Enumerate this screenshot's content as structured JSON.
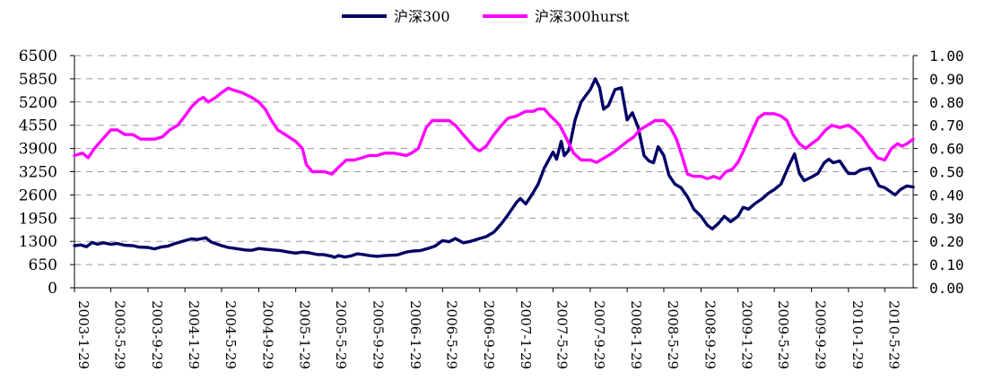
{
  "chart_data": {
    "type": "line",
    "title": "",
    "xlabel": "",
    "ylabel": "",
    "legend_position": "top-center",
    "grid": true,
    "x_start": "2003-1-29",
    "x_end": "2010-8-31",
    "x_tick_labels": [
      "2003-1-29",
      "2003-5-29",
      "2003-9-29",
      "2004-1-29",
      "2004-5-29",
      "2004-9-29",
      "2005-1-29",
      "2005-5-29",
      "2005-9-29",
      "2006-1-29",
      "2006-5-29",
      "2006-9-29",
      "2007-1-29",
      "2007-5-29",
      "2007-9-29",
      "2008-1-29",
      "2008-5-29",
      "2008-9-29",
      "2009-1-29",
      "2009-5-29",
      "2009-9-29",
      "2010-1-29",
      "2010-5-29"
    ],
    "y_left": {
      "ylim": [
        0,
        6500
      ],
      "ticks": [
        "0",
        "650",
        "1300",
        "1950",
        "2600",
        "3250",
        "3900",
        "4550",
        "5200",
        "5850",
        "6500"
      ]
    },
    "y_right": {
      "ylim": [
        0,
        1
      ],
      "ticks": [
        "0.00",
        "0.10",
        "0.20",
        "0.30",
        "0.40",
        "0.50",
        "0.60",
        "0.70",
        "0.80",
        "0.90",
        "1.00"
      ]
    },
    "series": [
      {
        "name": "沪深300",
        "axis": "left",
        "color": "#000066",
        "points": [
          [
            "2003-01-29",
            1180
          ],
          [
            "2003-02-20",
            1200
          ],
          [
            "2003-03-10",
            1150
          ],
          [
            "2003-03-28",
            1270
          ],
          [
            "2003-04-15",
            1220
          ],
          [
            "2003-05-05",
            1260
          ],
          [
            "2003-05-29",
            1220
          ],
          [
            "2003-06-20",
            1240
          ],
          [
            "2003-07-15",
            1190
          ],
          [
            "2003-08-10",
            1180
          ],
          [
            "2003-08-30",
            1140
          ],
          [
            "2003-09-29",
            1130
          ],
          [
            "2003-10-20",
            1090
          ],
          [
            "2003-11-10",
            1140
          ],
          [
            "2003-12-05",
            1170
          ],
          [
            "2003-12-31",
            1250
          ],
          [
            "2004-01-29",
            1320
          ],
          [
            "2004-02-20",
            1370
          ],
          [
            "2004-03-10",
            1350
          ],
          [
            "2004-04-07",
            1400
          ],
          [
            "2004-04-25",
            1280
          ],
          [
            "2004-05-29",
            1180
          ],
          [
            "2004-06-20",
            1130
          ],
          [
            "2004-07-15",
            1100
          ],
          [
            "2004-08-15",
            1060
          ],
          [
            "2004-09-05",
            1050
          ],
          [
            "2004-09-29",
            1100
          ],
          [
            "2004-10-20",
            1080
          ],
          [
            "2004-11-15",
            1060
          ],
          [
            "2004-12-10",
            1040
          ],
          [
            "2005-01-05",
            1000
          ],
          [
            "2005-01-29",
            970
          ],
          [
            "2005-02-20",
            1000
          ],
          [
            "2005-03-15",
            980
          ],
          [
            "2005-04-10",
            930
          ],
          [
            "2005-04-30",
            930
          ],
          [
            "2005-05-29",
            880
          ],
          [
            "2005-06-06",
            850
          ],
          [
            "2005-06-20",
            900
          ],
          [
            "2005-07-10",
            860
          ],
          [
            "2005-07-30",
            890
          ],
          [
            "2005-08-20",
            950
          ],
          [
            "2005-09-10",
            930
          ],
          [
            "2005-09-29",
            900
          ],
          [
            "2005-10-25",
            880
          ],
          [
            "2005-11-20",
            900
          ],
          [
            "2005-12-31",
            920
          ],
          [
            "2006-01-29",
            1000
          ],
          [
            "2006-02-20",
            1030
          ],
          [
            "2006-03-15",
            1040
          ],
          [
            "2006-04-10",
            1100
          ],
          [
            "2006-05-05",
            1170
          ],
          [
            "2006-05-29",
            1320
          ],
          [
            "2006-06-20",
            1290
          ],
          [
            "2006-07-10",
            1380
          ],
          [
            "2006-08-05",
            1260
          ],
          [
            "2006-08-25",
            1290
          ],
          [
            "2006-09-29",
            1380
          ],
          [
            "2006-10-20",
            1430
          ],
          [
            "2006-11-15",
            1560
          ],
          [
            "2006-12-10",
            1800
          ],
          [
            "2006-12-31",
            2040
          ],
          [
            "2007-01-29",
            2400
          ],
          [
            "2007-02-10",
            2500
          ],
          [
            "2007-02-28",
            2350
          ],
          [
            "2007-03-20",
            2600
          ],
          [
            "2007-04-10",
            2900
          ],
          [
            "2007-04-30",
            3350
          ],
          [
            "2007-05-29",
            3800
          ],
          [
            "2007-06-10",
            3600
          ],
          [
            "2007-06-25",
            4100
          ],
          [
            "2007-07-05",
            3700
          ],
          [
            "2007-07-20",
            3850
          ],
          [
            "2007-08-10",
            4700
          ],
          [
            "2007-08-30",
            5200
          ],
          [
            "2007-09-29",
            5550
          ],
          [
            "2007-10-16",
            5850
          ],
          [
            "2007-10-30",
            5600
          ],
          [
            "2007-11-12",
            5000
          ],
          [
            "2007-11-28",
            5100
          ],
          [
            "2007-12-20",
            5550
          ],
          [
            "2008-01-10",
            5600
          ],
          [
            "2008-01-29",
            4700
          ],
          [
            "2008-02-15",
            4900
          ],
          [
            "2008-03-05",
            4500
          ],
          [
            "2008-03-25",
            3700
          ],
          [
            "2008-04-10",
            3550
          ],
          [
            "2008-04-25",
            3500
          ],
          [
            "2008-05-10",
            3950
          ],
          [
            "2008-05-29",
            3700
          ],
          [
            "2008-06-15",
            3150
          ],
          [
            "2008-07-05",
            2900
          ],
          [
            "2008-07-25",
            2800
          ],
          [
            "2008-08-15",
            2550
          ],
          [
            "2008-09-05",
            2200
          ],
          [
            "2008-09-29",
            2000
          ],
          [
            "2008-10-20",
            1750
          ],
          [
            "2008-11-05",
            1650
          ],
          [
            "2008-11-25",
            1800
          ],
          [
            "2008-12-15",
            2000
          ],
          [
            "2009-01-05",
            1850
          ],
          [
            "2009-01-29",
            2000
          ],
          [
            "2009-02-15",
            2250
          ],
          [
            "2009-03-05",
            2200
          ],
          [
            "2009-03-25",
            2350
          ],
          [
            "2009-04-20",
            2500
          ],
          [
            "2009-05-10",
            2650
          ],
          [
            "2009-05-29",
            2750
          ],
          [
            "2009-06-20",
            2900
          ],
          [
            "2009-07-15",
            3400
          ],
          [
            "2009-08-04",
            3750
          ],
          [
            "2009-08-20",
            3200
          ],
          [
            "2009-09-05",
            3000
          ],
          [
            "2009-09-29",
            3100
          ],
          [
            "2009-10-20",
            3200
          ],
          [
            "2009-11-10",
            3500
          ],
          [
            "2009-11-25",
            3600
          ],
          [
            "2009-12-10",
            3500
          ],
          [
            "2009-12-31",
            3550
          ],
          [
            "2010-01-20",
            3300
          ],
          [
            "2010-01-29",
            3200
          ],
          [
            "2010-02-20",
            3200
          ],
          [
            "2010-03-10",
            3300
          ],
          [
            "2010-04-10",
            3350
          ],
          [
            "2010-04-25",
            3100
          ],
          [
            "2010-05-10",
            2850
          ],
          [
            "2010-05-29",
            2800
          ],
          [
            "2010-06-15",
            2700
          ],
          [
            "2010-07-02",
            2600
          ],
          [
            "2010-07-20",
            2750
          ],
          [
            "2010-08-10",
            2850
          ],
          [
            "2010-08-31",
            2820
          ]
        ]
      },
      {
        "name": "沪深300hurst",
        "axis": "right",
        "color": "#ff00ff",
        "points": [
          [
            "2003-01-29",
            0.57
          ],
          [
            "2003-02-25",
            0.58
          ],
          [
            "2003-03-15",
            0.56
          ],
          [
            "2003-04-05",
            0.6
          ],
          [
            "2003-04-25",
            0.63
          ],
          [
            "2003-05-29",
            0.68
          ],
          [
            "2003-06-20",
            0.68
          ],
          [
            "2003-07-15",
            0.66
          ],
          [
            "2003-08-10",
            0.66
          ],
          [
            "2003-09-05",
            0.64
          ],
          [
            "2003-09-29",
            0.64
          ],
          [
            "2003-10-20",
            0.64
          ],
          [
            "2003-11-15",
            0.65
          ],
          [
            "2003-12-10",
            0.68
          ],
          [
            "2004-01-05",
            0.7
          ],
          [
            "2004-01-29",
            0.74
          ],
          [
            "2004-02-20",
            0.78
          ],
          [
            "2004-03-15",
            0.81
          ],
          [
            "2004-03-30",
            0.82
          ],
          [
            "2004-04-15",
            0.8
          ],
          [
            "2004-05-10",
            0.82
          ],
          [
            "2004-05-29",
            0.84
          ],
          [
            "2004-06-20",
            0.86
          ],
          [
            "2004-07-10",
            0.85
          ],
          [
            "2004-08-05",
            0.84
          ],
          [
            "2004-09-05",
            0.82
          ],
          [
            "2004-09-29",
            0.8
          ],
          [
            "2004-10-20",
            0.77
          ],
          [
            "2004-11-10",
            0.72
          ],
          [
            "2004-12-01",
            0.68
          ],
          [
            "2004-12-25",
            0.66
          ],
          [
            "2005-01-29",
            0.63
          ],
          [
            "2005-02-20",
            0.6
          ],
          [
            "2005-03-05",
            0.53
          ],
          [
            "2005-03-25",
            0.5
          ],
          [
            "2005-04-15",
            0.5
          ],
          [
            "2005-05-05",
            0.5
          ],
          [
            "2005-05-29",
            0.49
          ],
          [
            "2005-06-20",
            0.52
          ],
          [
            "2005-07-15",
            0.55
          ],
          [
            "2005-08-10",
            0.55
          ],
          [
            "2005-09-05",
            0.56
          ],
          [
            "2005-09-29",
            0.57
          ],
          [
            "2005-10-25",
            0.57
          ],
          [
            "2005-11-20",
            0.58
          ],
          [
            "2005-12-20",
            0.58
          ],
          [
            "2006-01-29",
            0.57
          ],
          [
            "2006-02-15",
            0.58
          ],
          [
            "2006-03-10",
            0.6
          ],
          [
            "2006-04-05",
            0.69
          ],
          [
            "2006-04-25",
            0.72
          ],
          [
            "2006-05-29",
            0.72
          ],
          [
            "2006-06-20",
            0.72
          ],
          [
            "2006-07-10",
            0.7
          ],
          [
            "2006-08-05",
            0.66
          ],
          [
            "2006-08-25",
            0.63
          ],
          [
            "2006-09-15",
            0.6
          ],
          [
            "2006-09-29",
            0.59
          ],
          [
            "2006-10-20",
            0.61
          ],
          [
            "2006-11-15",
            0.66
          ],
          [
            "2006-12-10",
            0.7
          ],
          [
            "2006-12-31",
            0.73
          ],
          [
            "2007-01-29",
            0.74
          ],
          [
            "2007-02-28",
            0.76
          ],
          [
            "2007-03-25",
            0.76
          ],
          [
            "2007-04-10",
            0.77
          ],
          [
            "2007-04-30",
            0.77
          ],
          [
            "2007-05-20",
            0.74
          ],
          [
            "2007-05-29",
            0.73
          ],
          [
            "2007-06-20",
            0.7
          ],
          [
            "2007-07-10",
            0.65
          ],
          [
            "2007-08-05",
            0.58
          ],
          [
            "2007-08-30",
            0.55
          ],
          [
            "2007-09-29",
            0.55
          ],
          [
            "2007-10-20",
            0.54
          ],
          [
            "2007-11-15",
            0.56
          ],
          [
            "2007-12-10",
            0.58
          ],
          [
            "2007-12-31",
            0.6
          ],
          [
            "2008-01-29",
            0.63
          ],
          [
            "2008-02-20",
            0.65
          ],
          [
            "2008-03-10",
            0.68
          ],
          [
            "2008-04-05",
            0.7
          ],
          [
            "2008-04-30",
            0.72
          ],
          [
            "2008-05-29",
            0.72
          ],
          [
            "2008-06-20",
            0.69
          ],
          [
            "2008-07-10",
            0.64
          ],
          [
            "2008-07-30",
            0.56
          ],
          [
            "2008-08-15",
            0.49
          ],
          [
            "2008-09-05",
            0.48
          ],
          [
            "2008-09-29",
            0.48
          ],
          [
            "2008-10-20",
            0.47
          ],
          [
            "2008-11-10",
            0.48
          ],
          [
            "2008-11-30",
            0.47
          ],
          [
            "2008-12-20",
            0.5
          ],
          [
            "2009-01-10",
            0.51
          ],
          [
            "2009-01-29",
            0.54
          ],
          [
            "2009-02-20",
            0.6
          ],
          [
            "2009-03-15",
            0.67
          ],
          [
            "2009-04-05",
            0.73
          ],
          [
            "2009-04-25",
            0.75
          ],
          [
            "2009-05-29",
            0.75
          ],
          [
            "2009-06-20",
            0.74
          ],
          [
            "2009-07-10",
            0.72
          ],
          [
            "2009-07-30",
            0.66
          ],
          [
            "2009-08-20",
            0.62
          ],
          [
            "2009-09-10",
            0.6
          ],
          [
            "2009-09-29",
            0.62
          ],
          [
            "2009-10-20",
            0.64
          ],
          [
            "2009-11-15",
            0.68
          ],
          [
            "2009-12-05",
            0.7
          ],
          [
            "2009-12-31",
            0.69
          ],
          [
            "2010-01-29",
            0.7
          ],
          [
            "2010-02-20",
            0.68
          ],
          [
            "2010-03-15",
            0.65
          ],
          [
            "2010-04-10",
            0.6
          ],
          [
            "2010-05-05",
            0.56
          ],
          [
            "2010-05-29",
            0.55
          ],
          [
            "2010-06-20",
            0.6
          ],
          [
            "2010-07-10",
            0.62
          ],
          [
            "2010-07-25",
            0.61
          ],
          [
            "2010-08-10",
            0.62
          ],
          [
            "2010-08-31",
            0.64
          ]
        ]
      }
    ]
  }
}
